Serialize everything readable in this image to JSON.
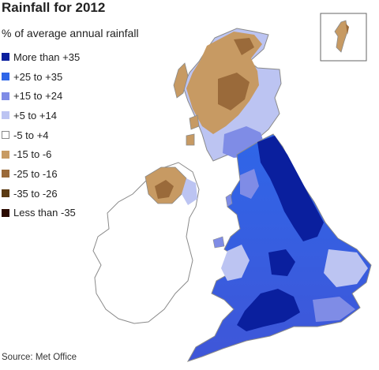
{
  "title": "Rainfall for 2012",
  "subtitle": "% of average annual rainfall",
  "legend": [
    {
      "label": "More than +35",
      "color": "#0a1f9e"
    },
    {
      "label": "+25 to +35",
      "color": "#2f66e8"
    },
    {
      "label": "+15 to +24",
      "color": "#7f8ce6"
    },
    {
      "label": "+5 to +14",
      "color": "#bcc4f2"
    },
    {
      "label": "-5 to +4",
      "color": "#ffffff"
    },
    {
      "label": "-15 to -6",
      "color": "#c79a63"
    },
    {
      "label": "-25 to -16",
      "color": "#9a6a3a"
    },
    {
      "label": "-35 to -26",
      "color": "#5a3a12"
    },
    {
      "label": "Less than -35",
      "color": "#2a0a00"
    }
  ],
  "source": "Source: Met Office"
}
